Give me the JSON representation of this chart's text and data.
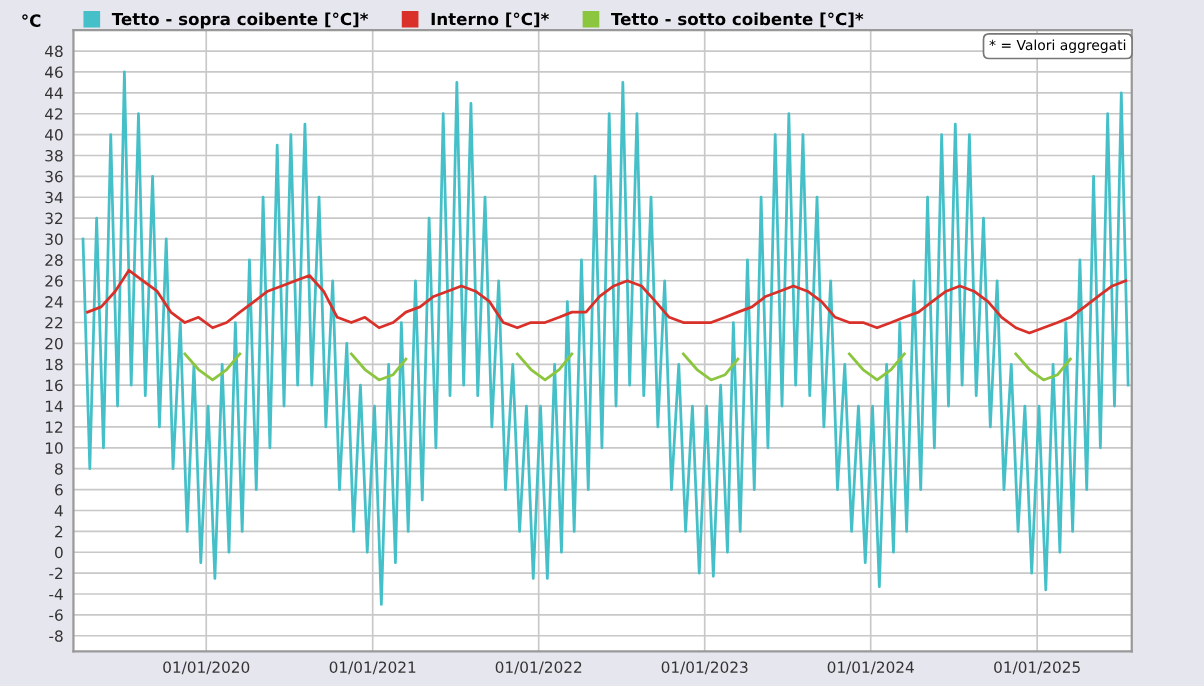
{
  "chart_data": {
    "type": "line",
    "ylabel": "°C",
    "annotations": [
      "* = Valori aggregati"
    ],
    "legend": "top left",
    "grid": true,
    "xlim": [
      "2019-03-15",
      "2025-07-28"
    ],
    "xticks": [
      {
        "value": "2020-01-01",
        "label": "01/01/2020"
      },
      {
        "value": "2021-01-01",
        "label": "01/01/2021"
      },
      {
        "value": "2022-01-01",
        "label": "01/01/2022"
      },
      {
        "value": "2023-01-01",
        "label": "01/01/2023"
      },
      {
        "value": "2024-01-01",
        "label": "01/01/2024"
      },
      {
        "value": "2025-01-01",
        "label": "01/01/2025"
      }
    ],
    "ylim": [
      -9.5,
      50
    ],
    "yticks": [
      -8,
      -6,
      -4,
      -2,
      0,
      2,
      4,
      6,
      8,
      10,
      12,
      14,
      16,
      18,
      20,
      22,
      24,
      26,
      28,
      30,
      32,
      34,
      36,
      38,
      40,
      42,
      44,
      46,
      48
    ],
    "series": [
      {
        "name": "Tetto - sopra coibente [°C]*",
        "color": "#45c0c8",
        "x": [
          "2019-04-05",
          "2019-04-20",
          "2019-05-05",
          "2019-05-20",
          "2019-06-05",
          "2019-06-20",
          "2019-07-05",
          "2019-07-20",
          "2019-08-05",
          "2019-08-20",
          "2019-09-05",
          "2019-09-20",
          "2019-10-05",
          "2019-10-20",
          "2019-11-05",
          "2019-11-20",
          "2019-12-05",
          "2019-12-20",
          "2020-01-05",
          "2020-01-20",
          "2020-02-05",
          "2020-02-20",
          "2020-03-05",
          "2020-03-20",
          "2020-04-05",
          "2020-04-20",
          "2020-05-05",
          "2020-05-20",
          "2020-06-05",
          "2020-06-20",
          "2020-07-05",
          "2020-07-20",
          "2020-08-05",
          "2020-08-20",
          "2020-09-05",
          "2020-09-20",
          "2020-10-05",
          "2020-10-20",
          "2020-11-05",
          "2020-11-20",
          "2020-12-05",
          "2020-12-20",
          "2021-01-05",
          "2021-01-20",
          "2021-02-05",
          "2021-02-20",
          "2021-03-05",
          "2021-03-20",
          "2021-04-05",
          "2021-04-20",
          "2021-05-05",
          "2021-05-20",
          "2021-06-05",
          "2021-06-20",
          "2021-07-05",
          "2021-07-20",
          "2021-08-05",
          "2021-08-20",
          "2021-09-05",
          "2021-09-20",
          "2021-10-05",
          "2021-10-20",
          "2021-11-05",
          "2021-11-20",
          "2021-12-05",
          "2021-12-20",
          "2022-01-05",
          "2022-01-20",
          "2022-02-05",
          "2022-02-20",
          "2022-03-05",
          "2022-03-20",
          "2022-04-05",
          "2022-04-20",
          "2022-05-05",
          "2022-05-20",
          "2022-06-05",
          "2022-06-20",
          "2022-07-05",
          "2022-07-20",
          "2022-08-05",
          "2022-08-20",
          "2022-09-05",
          "2022-09-20",
          "2022-10-05",
          "2022-10-20",
          "2022-11-05",
          "2022-11-20",
          "2022-12-05",
          "2022-12-20",
          "2023-01-05",
          "2023-01-20",
          "2023-02-05",
          "2023-02-20",
          "2023-03-05",
          "2023-03-20",
          "2023-04-05",
          "2023-04-20",
          "2023-05-05",
          "2023-05-20",
          "2023-06-05",
          "2023-06-20",
          "2023-07-05",
          "2023-07-20",
          "2023-08-05",
          "2023-08-20",
          "2023-09-05",
          "2023-09-20",
          "2023-10-05",
          "2023-10-20",
          "2023-11-05",
          "2023-11-20",
          "2023-12-05",
          "2023-12-20",
          "2024-01-05",
          "2024-01-20",
          "2024-02-05",
          "2024-02-20",
          "2024-03-05",
          "2024-03-20",
          "2024-04-05",
          "2024-04-20",
          "2024-05-05",
          "2024-05-20",
          "2024-06-05",
          "2024-06-20",
          "2024-07-05",
          "2024-07-20",
          "2024-08-05",
          "2024-08-20",
          "2024-09-05",
          "2024-09-20",
          "2024-10-05",
          "2024-10-20",
          "2024-11-05",
          "2024-11-20",
          "2024-12-05",
          "2024-12-20",
          "2025-01-05",
          "2025-01-20",
          "2025-02-05",
          "2025-02-20",
          "2025-03-05",
          "2025-03-20",
          "2025-04-05",
          "2025-04-20",
          "2025-05-05",
          "2025-05-20",
          "2025-06-05",
          "2025-06-20",
          "2025-07-05",
          "2025-07-20"
        ],
        "values": [
          30,
          8,
          32,
          10,
          40,
          14,
          46,
          16,
          42,
          15,
          36,
          12,
          30,
          8,
          22,
          2,
          18,
          -1,
          14,
          -2.5,
          18,
          0,
          22,
          2,
          28,
          6,
          34,
          10,
          39,
          14,
          40,
          16,
          41,
          16,
          34,
          12,
          26,
          6,
          20,
          2,
          16,
          0,
          14,
          -5,
          18,
          -1,
          22,
          2,
          26,
          5,
          32,
          10,
          42,
          15,
          45,
          16,
          43,
          15,
          34,
          12,
          26,
          6,
          18,
          2,
          14,
          -2.5,
          14,
          -2.5,
          18,
          0,
          24,
          2,
          28,
          6,
          36,
          10,
          42,
          14,
          45,
          16,
          42,
          15,
          34,
          12,
          26,
          6,
          18,
          2,
          14,
          -2,
          14,
          -2.3,
          16,
          0,
          22,
          2,
          28,
          6,
          34,
          10,
          40,
          14,
          42,
          16,
          40,
          15,
          34,
          12,
          26,
          6,
          18,
          2,
          14,
          -1,
          14,
          -3.3,
          18,
          0,
          22,
          2,
          26,
          6,
          34,
          10,
          40,
          14,
          41,
          16,
          40,
          15,
          32,
          12,
          26,
          6,
          18,
          2,
          14,
          -2,
          14,
          -3.6,
          18,
          0,
          22,
          2,
          28,
          6,
          36,
          10,
          42,
          14,
          44,
          16
        ]
      },
      {
        "name": "Interno [°C]*",
        "color": "#d9302a",
        "x": [
          "2019-04-15",
          "2019-05-15",
          "2019-06-15",
          "2019-07-15",
          "2019-08-15",
          "2019-09-15",
          "2019-10-15",
          "2019-11-15",
          "2019-12-15",
          "2020-01-15",
          "2020-02-15",
          "2020-03-15",
          "2020-04-15",
          "2020-05-15",
          "2020-06-15",
          "2020-07-15",
          "2020-08-15",
          "2020-09-15",
          "2020-10-15",
          "2020-11-15",
          "2020-12-15",
          "2021-01-15",
          "2021-02-15",
          "2021-03-15",
          "2021-04-15",
          "2021-05-15",
          "2021-06-15",
          "2021-07-15",
          "2021-08-15",
          "2021-09-15",
          "2021-10-15",
          "2021-11-15",
          "2021-12-15",
          "2022-01-15",
          "2022-02-15",
          "2022-03-15",
          "2022-04-15",
          "2022-05-15",
          "2022-06-15",
          "2022-07-15",
          "2022-08-15",
          "2022-09-15",
          "2022-10-15",
          "2022-11-15",
          "2022-12-15",
          "2023-01-15",
          "2023-02-15",
          "2023-03-15",
          "2023-04-15",
          "2023-05-15",
          "2023-06-15",
          "2023-07-15",
          "2023-08-15",
          "2023-09-15",
          "2023-10-15",
          "2023-11-15",
          "2023-12-15",
          "2024-01-15",
          "2024-02-15",
          "2024-03-15",
          "2024-04-15",
          "2024-05-15",
          "2024-06-15",
          "2024-07-15",
          "2024-08-15",
          "2024-09-15",
          "2024-10-15",
          "2024-11-15",
          "2024-12-15",
          "2025-01-15",
          "2025-02-15",
          "2025-03-15",
          "2025-04-15",
          "2025-05-15",
          "2025-06-15",
          "2025-07-15"
        ],
        "values": [
          23,
          23.5,
          25,
          27,
          26,
          25,
          23,
          22,
          22.5,
          21.5,
          22,
          23,
          24,
          25,
          25.5,
          26,
          26.5,
          25,
          22.5,
          22,
          22.5,
          21.5,
          22,
          23,
          23.5,
          24.5,
          25,
          25.5,
          25,
          24,
          22,
          21.5,
          22,
          22,
          22.5,
          23,
          23,
          24.5,
          25.5,
          26,
          25.5,
          24,
          22.5,
          22,
          22,
          22,
          22.5,
          23,
          23.5,
          24.5,
          25,
          25.5,
          25,
          24,
          22.5,
          22,
          22,
          21.5,
          22,
          22.5,
          23,
          24,
          25,
          25.5,
          25,
          24,
          22.5,
          21.5,
          21,
          21.5,
          22,
          22.5,
          23.5,
          24.5,
          25.5,
          26
        ]
      },
      {
        "name": "Tetto - sotto coibente [°C]*",
        "color": "#8cc63f",
        "x": [
          "2019-11-15",
          "2019-12-15",
          "2020-01-15",
          "2020-02-15",
          "2020-03-15",
          "2020-04-15",
          "2020-10-15",
          "2020-11-15",
          "2020-12-15",
          "2021-01-15",
          "2021-02-15",
          "2021-03-15",
          "2021-04-15",
          "2021-10-15",
          "2021-11-15",
          "2021-12-15",
          "2022-01-15",
          "2022-02-15",
          "2022-03-15",
          "2022-04-15",
          "2022-10-15",
          "2022-11-15",
          "2022-12-15",
          "2023-01-15",
          "2023-02-15",
          "2023-03-15",
          "2023-04-15",
          "2023-10-15",
          "2023-11-15",
          "2023-12-15",
          "2024-01-15",
          "2024-02-15",
          "2024-03-15",
          "2024-04-15",
          "2024-10-15",
          "2024-11-15",
          "2024-12-15",
          "2025-01-15",
          "2025-02-15",
          "2025-03-15"
        ],
        "values": [
          19,
          17.5,
          16.5,
          17.5,
          19,
          null,
          null,
          19,
          17.5,
          16.5,
          17,
          18.5,
          null,
          null,
          19,
          17.5,
          16.5,
          17.5,
          19,
          null,
          null,
          19,
          17.5,
          16.5,
          17,
          18.5,
          null,
          null,
          19,
          17.5,
          16.5,
          17.5,
          19,
          null,
          null,
          19,
          17.5,
          16.5,
          17,
          18.5
        ]
      }
    ]
  }
}
